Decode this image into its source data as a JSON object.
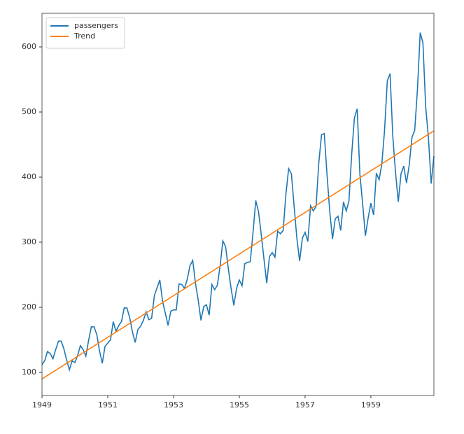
{
  "chart_data": {
    "type": "line",
    "series": [
      {
        "name": "passengers",
        "color": "#1f77b4",
        "x": [
          1949,
          1949.0833,
          1949.1667,
          1949.25,
          1949.3333,
          1949.4167,
          1949.5,
          1949.5833,
          1949.6667,
          1949.75,
          1949.8333,
          1949.9167,
          1950,
          1950.0833,
          1950.1667,
          1950.25,
          1950.3333,
          1950.4167,
          1950.5,
          1950.5833,
          1950.6667,
          1950.75,
          1950.8333,
          1950.9167,
          1951,
          1951.0833,
          1951.1667,
          1951.25,
          1951.3333,
          1951.4167,
          1951.5,
          1951.5833,
          1951.6667,
          1951.75,
          1951.8333,
          1951.9167,
          1952,
          1952.0833,
          1952.1667,
          1952.25,
          1952.3333,
          1952.4167,
          1952.5,
          1952.5833,
          1952.6667,
          1952.75,
          1952.8333,
          1952.9167,
          1953,
          1953.0833,
          1953.1667,
          1953.25,
          1953.3333,
          1953.4167,
          1953.5,
          1953.5833,
          1953.6667,
          1953.75,
          1953.8333,
          1953.9167,
          1954,
          1954.0833,
          1954.1667,
          1954.25,
          1954.3333,
          1954.4167,
          1954.5,
          1954.5833,
          1954.6667,
          1954.75,
          1954.8333,
          1954.9167,
          1955,
          1955.0833,
          1955.1667,
          1955.25,
          1955.3333,
          1955.4167,
          1955.5,
          1955.5833,
          1955.6667,
          1955.75,
          1955.8333,
          1955.9167,
          1956,
          1956.0833,
          1956.1667,
          1956.25,
          1956.3333,
          1956.4167,
          1956.5,
          1956.5833,
          1956.6667,
          1956.75,
          1956.8333,
          1956.9167,
          1957,
          1957.0833,
          1957.1667,
          1957.25,
          1957.3333,
          1957.4167,
          1957.5,
          1957.5833,
          1957.6667,
          1957.75,
          1957.8333,
          1957.9167,
          1958,
          1958.0833,
          1958.1667,
          1958.25,
          1958.3333,
          1958.4167,
          1958.5,
          1958.5833,
          1958.6667,
          1958.75,
          1958.8333,
          1958.9167,
          1959,
          1959.0833,
          1959.1667,
          1959.25,
          1959.3333,
          1959.4167,
          1959.5,
          1959.5833,
          1959.6667,
          1959.75,
          1959.8333,
          1959.9167,
          1960,
          1960.0833,
          1960.1667,
          1960.25,
          1960.3333,
          1960.4167,
          1960.5,
          1960.5833,
          1960.6667,
          1960.75,
          1960.8333,
          1960.9167
        ],
        "values": [
          112,
          118,
          132,
          129,
          121,
          135,
          148,
          148,
          136,
          119,
          104,
          118,
          115,
          126,
          141,
          135,
          125,
          149,
          170,
          170,
          158,
          133,
          114,
          140,
          145,
          150,
          178,
          163,
          172,
          178,
          199,
          199,
          184,
          162,
          146,
          166,
          171,
          180,
          193,
          181,
          183,
          218,
          230,
          242,
          209,
          191,
          172,
          194,
          196,
          196,
          236,
          235,
          229,
          243,
          264,
          272,
          237,
          211,
          180,
          201,
          204,
          188,
          235,
          227,
          234,
          264,
          302,
          293,
          259,
          229,
          203,
          229,
          242,
          233,
          267,
          269,
          270,
          315,
          364,
          347,
          312,
          274,
          237,
          278,
          284,
          277,
          317,
          313,
          318,
          374,
          413,
          405,
          355,
          306,
          271,
          306,
          315,
          301,
          356,
          348,
          355,
          422,
          465,
          467,
          404,
          347,
          305,
          336,
          340,
          318,
          362,
          348,
          363,
          435,
          491,
          505,
          404,
          359,
          310,
          337,
          360,
          342,
          406,
          396,
          420,
          472,
          548,
          559,
          463,
          407,
          362,
          405,
          417,
          391,
          419,
          461,
          472,
          535,
          622,
          606,
          508,
          461,
          390,
          432
        ]
      },
      {
        "name": "Trend",
        "color": "#ff7f0e",
        "x": [
          1949,
          1960.9167
        ],
        "values": [
          90,
          471
        ]
      }
    ],
    "xlim": [
      1949,
      1960.9167
    ],
    "xticks": [
      1949,
      1951,
      1953,
      1955,
      1957,
      1959
    ],
    "ylim": [
      64.5,
      651.6
    ],
    "yticks": [
      100,
      200,
      300,
      400,
      500,
      600
    ],
    "legend": "upper left"
  }
}
